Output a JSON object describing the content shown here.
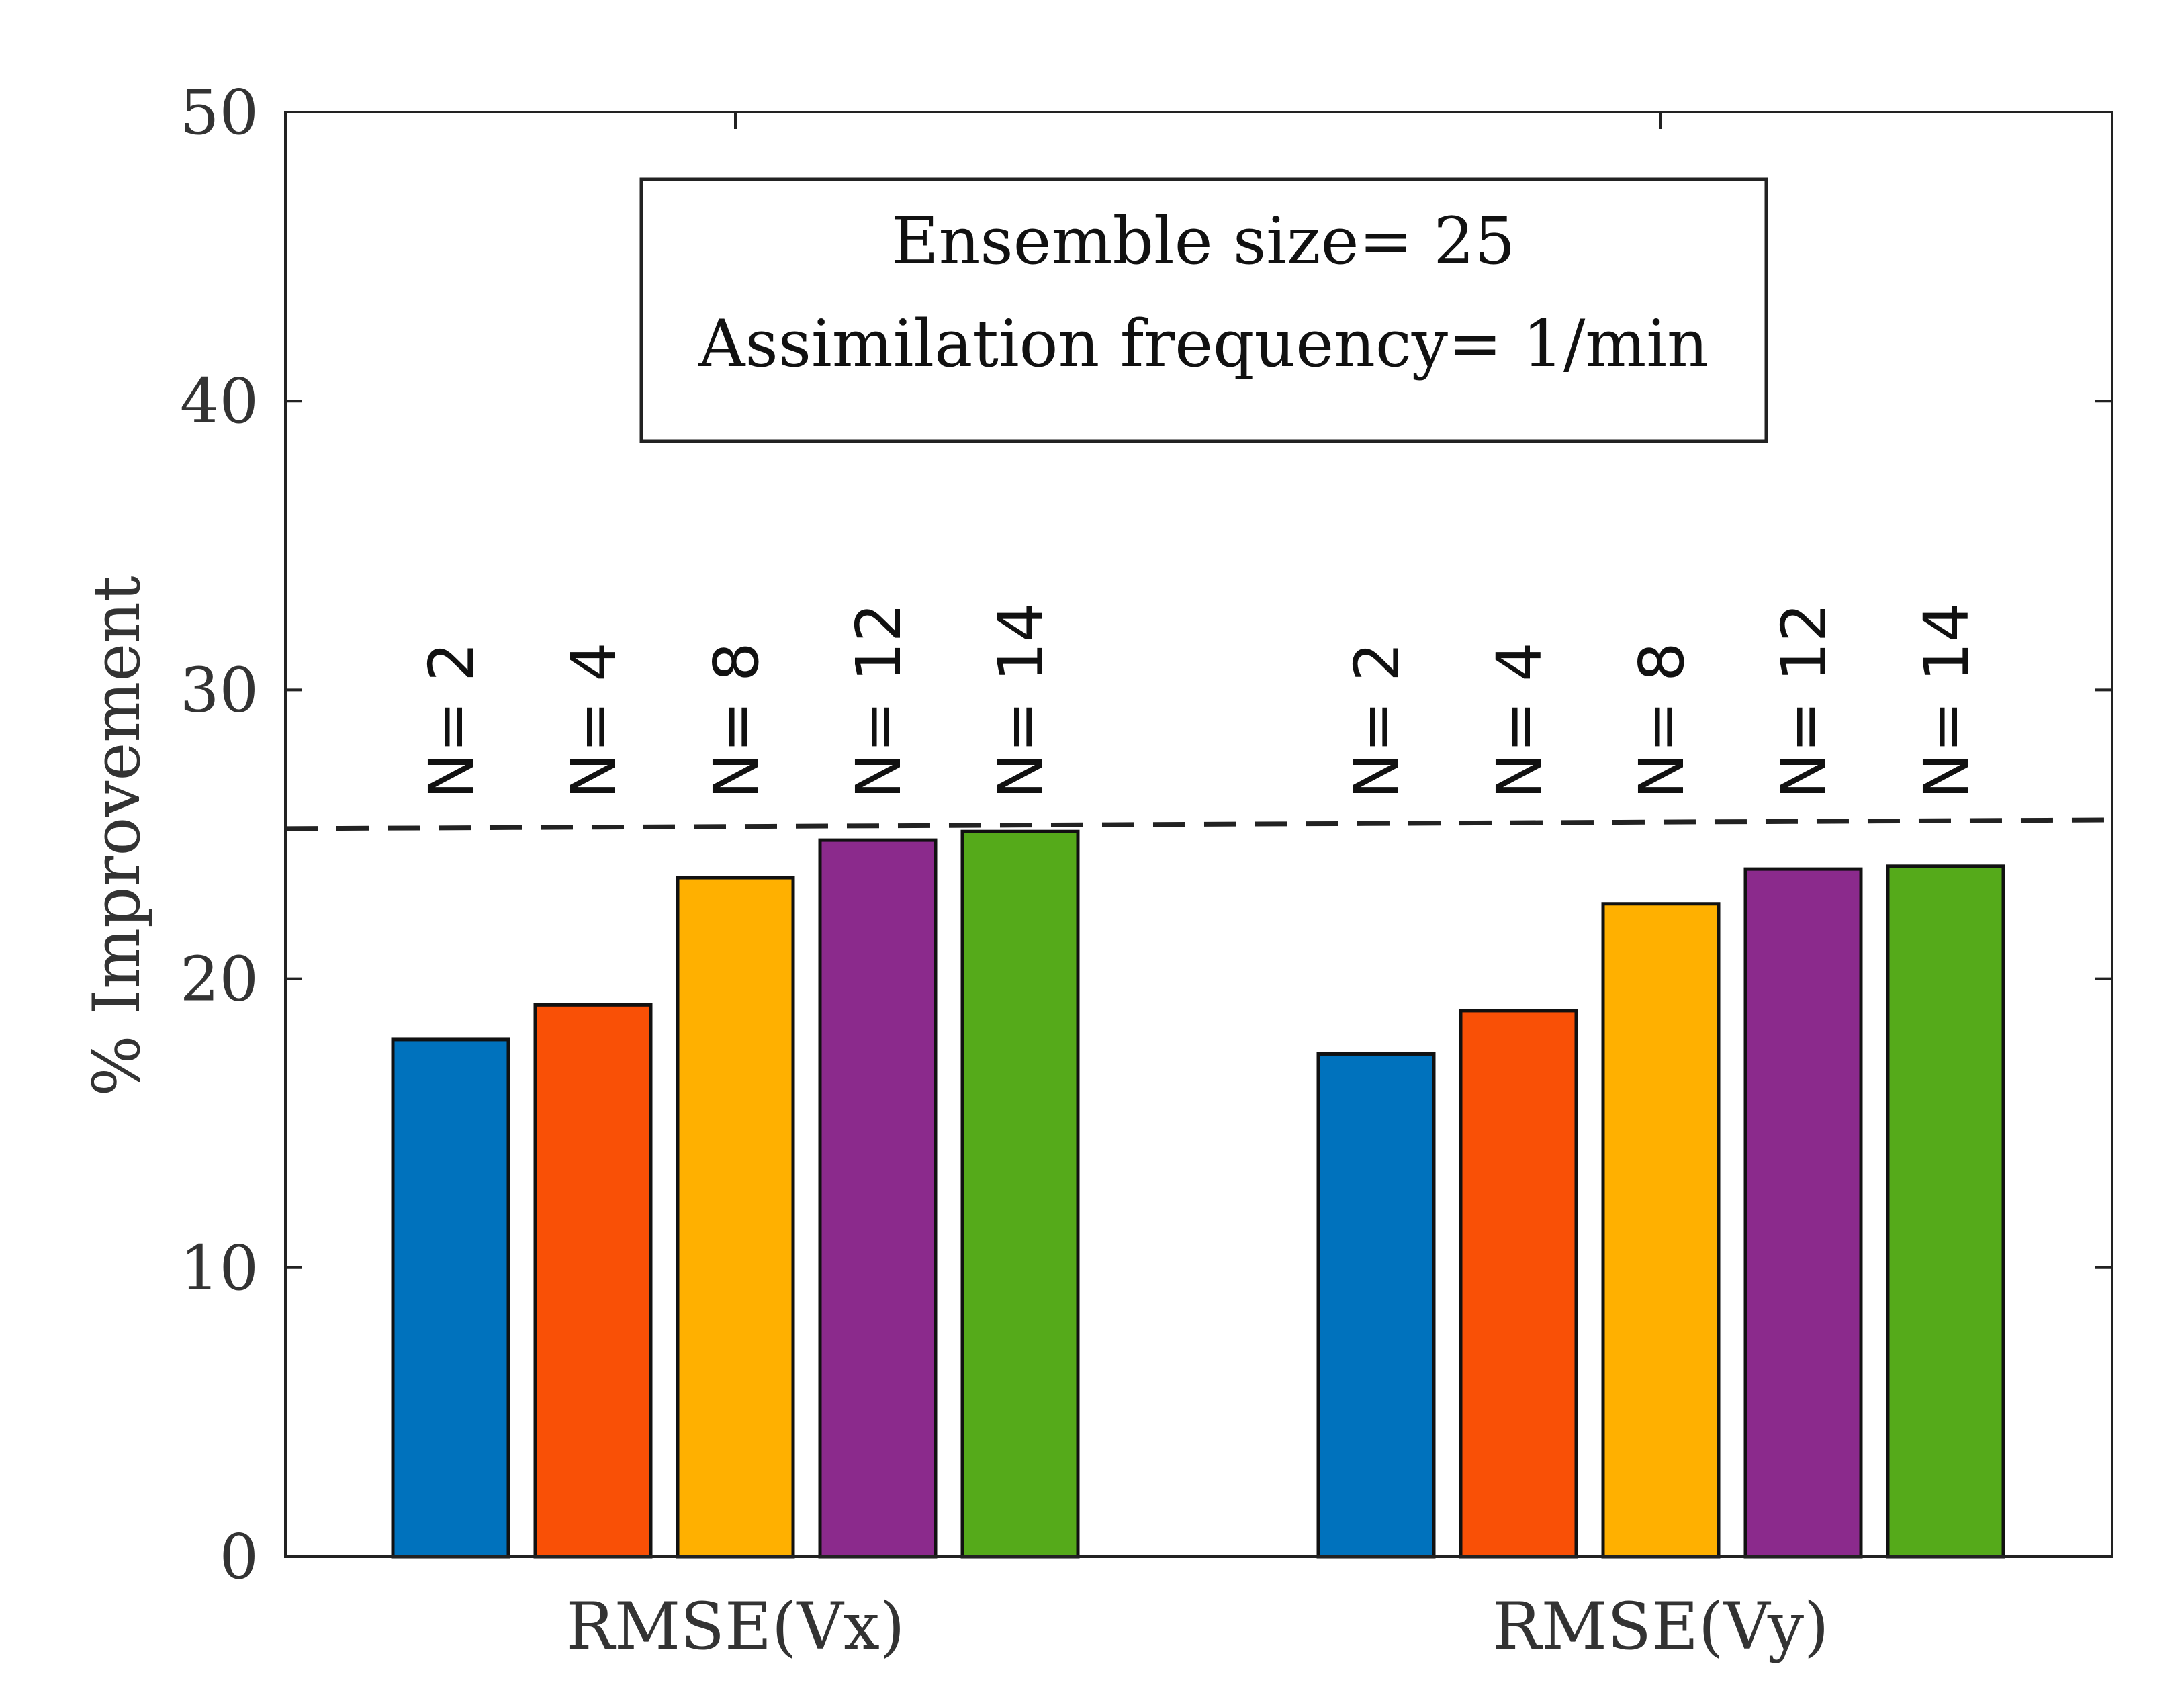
{
  "chart_data": {
    "type": "bar",
    "title": "",
    "xlabel": "",
    "ylabel": "% Improvement",
    "ylim": [
      0,
      50
    ],
    "yticks": [
      0,
      10,
      20,
      30,
      40,
      50
    ],
    "grid": false,
    "categories": [
      "RMSE(Vx)",
      "RMSE(Vy)"
    ],
    "series": [
      {
        "name": "N= 2",
        "color": "#0072BD",
        "values": [
          17.9,
          17.4
        ]
      },
      {
        "name": "N= 4",
        "color": "#F95006",
        "values": [
          19.1,
          18.9
        ]
      },
      {
        "name": "N= 8",
        "color": "#FFB000",
        "values": [
          23.5,
          22.6
        ]
      },
      {
        "name": "N= 12",
        "color": "#8B2A8C",
        "values": [
          24.8,
          23.8
        ]
      },
      {
        "name": "N= 14",
        "color": "#55AA1A",
        "values": [
          25.1,
          23.9
        ]
      }
    ],
    "reference_line": {
      "style": "dashed",
      "y_start": 25.2,
      "y_end": 25.5
    },
    "annotation": {
      "lines": [
        "Ensemble size= 25",
        "Assimilation frequency= 1/min"
      ],
      "position": "top-center"
    }
  }
}
